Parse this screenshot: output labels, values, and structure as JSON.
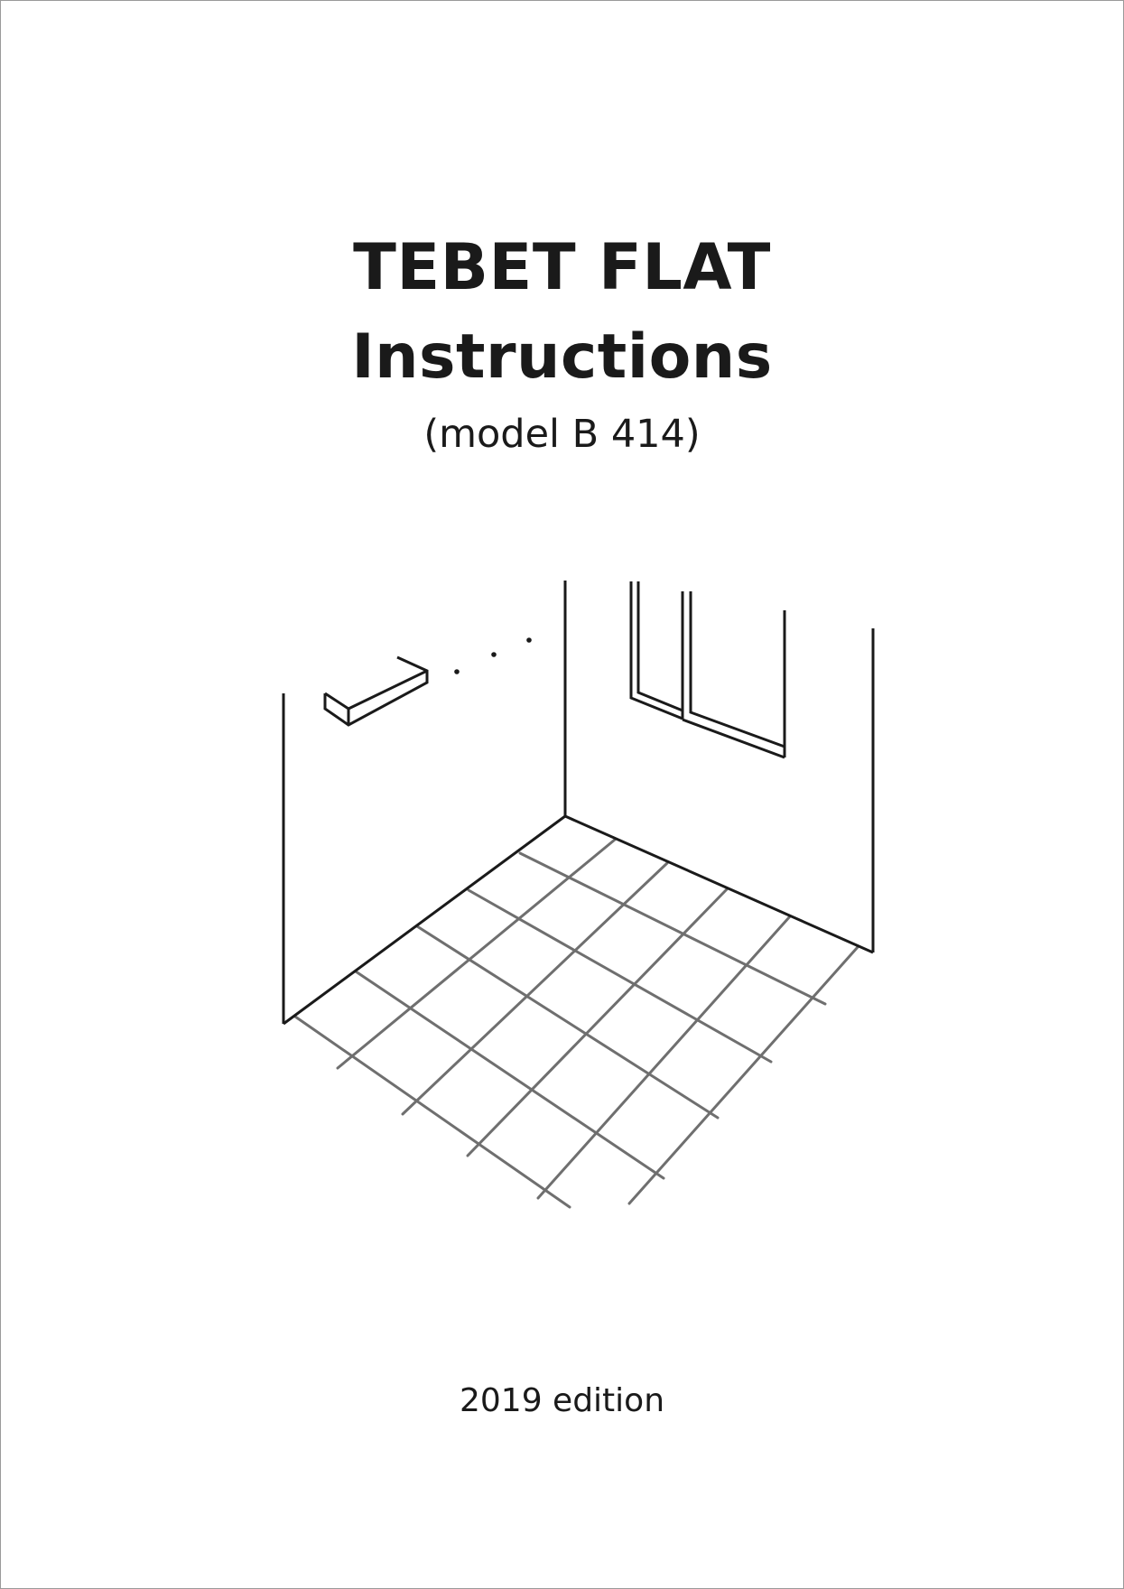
{
  "document": {
    "title": "TEBET FLAT",
    "subtitle": "Instructions",
    "model": "(model B 414)",
    "edition": "2019 edition"
  },
  "illustration": {
    "subject": "shower-corner-floor-tiles-icon",
    "line_color": "#1a1a1a",
    "grid_color": "#6f6f6f"
  }
}
